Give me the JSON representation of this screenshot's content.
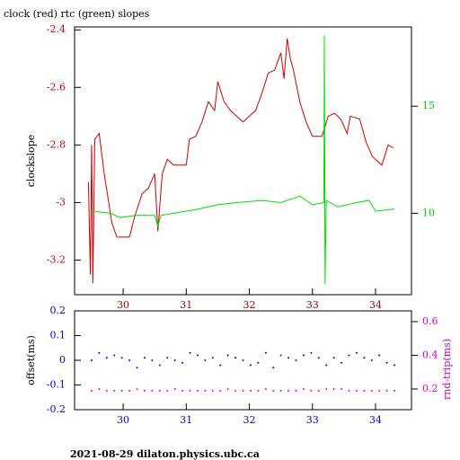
{
  "chart_data": [
    {
      "type": "line",
      "title": "clock (red) rtc (green) slopes",
      "ylabel": "clockslope",
      "xlim": [
        29.23,
        34.57
      ],
      "xticks": [
        30,
        31,
        32,
        33,
        34
      ],
      "ylim": [
        -3.32,
        -2.39
      ],
      "yticks": [
        -3.2,
        -3,
        -2.8,
        -2.6,
        -2.4
      ],
      "y2lim": [
        6.2,
        18.7
      ],
      "y2ticks": [
        10,
        15
      ],
      "series": [
        {
          "color": "#cc0000",
          "x": [
            29.45,
            29.48,
            29.5,
            29.52,
            29.55,
            29.62,
            29.7,
            29.75,
            29.82,
            29.9,
            30.0,
            30.1,
            30.18,
            30.3,
            30.4,
            30.5,
            30.55,
            30.62,
            30.7,
            30.8,
            31.0,
            31.05,
            31.15,
            31.25,
            31.35,
            31.45,
            31.5,
            31.6,
            31.7,
            31.8,
            31.9,
            32.0,
            32.1,
            32.2,
            32.3,
            32.4,
            32.5,
            32.55,
            32.6,
            32.65,
            32.7,
            32.8,
            32.9,
            33.0,
            33.15,
            33.25,
            33.35,
            33.45,
            33.55,
            33.6,
            33.75,
            33.85,
            33.95,
            34.1,
            34.2,
            34.28
          ],
          "values": [
            -2.93,
            -3.25,
            -2.8,
            -3.28,
            -2.78,
            -2.76,
            -2.9,
            -2.97,
            -3.07,
            -3.12,
            -3.12,
            -3.12,
            -3.05,
            -2.97,
            -2.95,
            -2.9,
            -3.1,
            -2.9,
            -2.85,
            -2.87,
            -2.87,
            -2.78,
            -2.77,
            -2.72,
            -2.65,
            -2.68,
            -2.58,
            -2.65,
            -2.68,
            -2.7,
            -2.72,
            -2.7,
            -2.68,
            -2.62,
            -2.55,
            -2.54,
            -2.48,
            -2.57,
            -2.43,
            -2.5,
            -2.54,
            -2.65,
            -2.72,
            -2.77,
            -2.77,
            -2.7,
            -2.69,
            -2.71,
            -2.76,
            -2.7,
            -2.71,
            -2.79,
            -2.84,
            -2.87,
            -2.8,
            -2.81
          ]
        },
        {
          "color": "#00dd00",
          "axis": "y2",
          "x": [
            29.5,
            29.8,
            29.95,
            30.2,
            30.5,
            30.55,
            30.6,
            30.8,
            31.2,
            31.5,
            31.8,
            32.2,
            32.5,
            32.8,
            33.0,
            33.18,
            33.19,
            33.2,
            33.22,
            33.4,
            33.7,
            33.9,
            34.0,
            34.3
          ],
          "values": [
            10.1,
            10.0,
            9.8,
            9.9,
            9.9,
            9.4,
            9.9,
            10.0,
            10.2,
            10.4,
            10.5,
            10.6,
            10.5,
            10.8,
            10.4,
            10.5,
            18.3,
            6.7,
            10.6,
            10.3,
            10.5,
            10.6,
            10.1,
            10.2
          ]
        }
      ]
    },
    {
      "type": "scatter",
      "ylabel": "offset(ms)",
      "y2label": "rnd-trip(ms)",
      "xlim": [
        29.23,
        34.57
      ],
      "xticks": [
        30,
        31,
        32,
        33,
        34
      ],
      "ylim": [
        -0.2,
        0.2
      ],
      "yticks": [
        -0.2,
        -0.1,
        0,
        0.1,
        0.2
      ],
      "y2lim": [
        0.077,
        0.664
      ],
      "y2ticks": [
        0.2,
        0.4,
        0.6
      ],
      "series": [
        {
          "color": "#0000cc",
          "x": [
            29.5,
            29.62,
            29.74,
            29.86,
            29.98,
            30.1,
            30.22,
            30.34,
            30.46,
            30.58,
            30.7,
            30.82,
            30.94,
            31.06,
            31.18,
            31.3,
            31.42,
            31.54,
            31.66,
            31.78,
            31.9,
            32.02,
            32.14,
            32.26,
            32.38,
            32.5,
            32.62,
            32.74,
            32.86,
            32.98,
            33.1,
            33.22,
            33.34,
            33.46,
            33.58,
            33.7,
            33.82,
            33.94,
            34.06,
            34.18,
            34.3
          ],
          "values": [
            0.0,
            0.03,
            0.01,
            0.02,
            0.01,
            0.0,
            -0.03,
            0.01,
            0.0,
            -0.02,
            0.01,
            0.0,
            -0.01,
            0.03,
            0.02,
            0.0,
            0.01,
            -0.02,
            0.02,
            0.01,
            0.0,
            -0.02,
            -0.01,
            0.03,
            -0.03,
            0.02,
            0.01,
            0.0,
            0.02,
            0.03,
            0.01,
            -0.02,
            0.01,
            -0.01,
            0.02,
            0.03,
            0.01,
            0.0,
            0.02,
            -0.01,
            -0.02
          ]
        },
        {
          "color": "#dd00dd",
          "axis": "y2",
          "x": [
            29.5,
            29.62,
            29.74,
            29.86,
            29.98,
            30.1,
            30.22,
            30.34,
            30.46,
            30.58,
            30.7,
            30.82,
            30.94,
            31.06,
            31.18,
            31.3,
            31.42,
            31.54,
            31.66,
            31.78,
            31.9,
            32.02,
            32.14,
            32.26,
            32.38,
            32.5,
            32.62,
            32.74,
            32.86,
            32.98,
            33.1,
            33.22,
            33.34,
            33.46,
            33.58,
            33.7,
            33.82,
            33.94,
            34.06,
            34.18,
            34.3
          ],
          "values": [
            0.19,
            0.2,
            0.19,
            0.19,
            0.19,
            0.19,
            0.2,
            0.19,
            0.19,
            0.19,
            0.19,
            0.2,
            0.19,
            0.19,
            0.19,
            0.19,
            0.19,
            0.19,
            0.2,
            0.19,
            0.19,
            0.19,
            0.19,
            0.2,
            0.19,
            0.19,
            0.19,
            0.19,
            0.2,
            0.19,
            0.19,
            0.2,
            0.2,
            0.2,
            0.19,
            0.19,
            0.19,
            0.19,
            0.19,
            0.19,
            0.19
          ]
        }
      ]
    }
  ],
  "footer": "2021-08-29  dilaton.physics.ubc.ca"
}
